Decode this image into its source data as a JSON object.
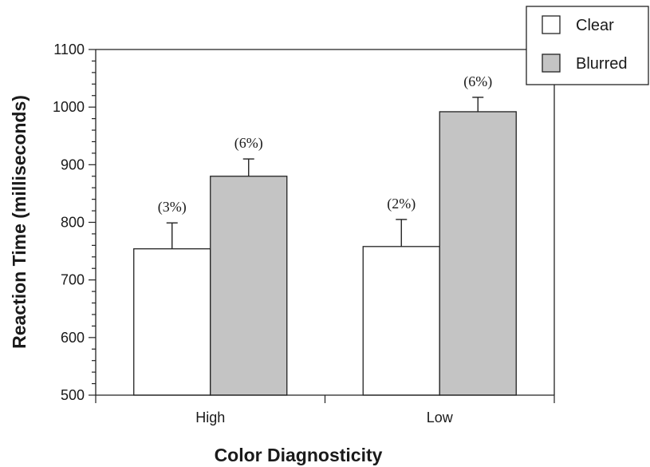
{
  "chart_data": {
    "type": "bar",
    "title": "",
    "xlabel": "Color Diagnosticity",
    "ylabel": "Reaction Time (milliseconds)",
    "ylim": [
      500,
      1100
    ],
    "yticks": [
      500,
      600,
      700,
      800,
      900,
      1000,
      1100
    ],
    "categories": [
      "High",
      "Low"
    ],
    "grid": false,
    "legend_position": "top-right",
    "series": [
      {
        "name": "Clear",
        "color": "#ffffff",
        "values": [
          754,
          758
        ],
        "errors": [
          45,
          47
        ],
        "labels": [
          "(3%)",
          "(2%)"
        ]
      },
      {
        "name": "Blurred",
        "color": "#c4c4c4",
        "values": [
          880,
          992
        ],
        "errors": [
          30,
          25
        ],
        "labels": [
          "(6%)",
          "(6%)"
        ]
      }
    ]
  }
}
